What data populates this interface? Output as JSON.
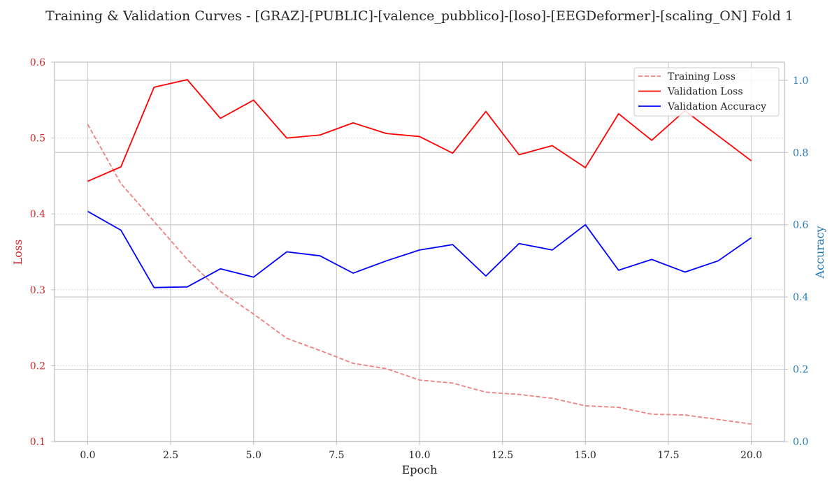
{
  "chart_data": {
    "type": "line",
    "title": "Training & Validation Curves - [GRAZ]-[PUBLIC]-[valence_pubblico]-[loso]-[EEGDeformer]-[scaling_ON] Fold 1",
    "xlabel": "Epoch",
    "ylabel_left": "Loss",
    "ylabel_right": "Accuracy",
    "xlim": [
      -1,
      21
    ],
    "ylim_left": [
      0.1,
      0.6
    ],
    "ylim_right": [
      0.0,
      1.05
    ],
    "x_ticks": [
      "0.0",
      "2.5",
      "5.0",
      "7.5",
      "10.0",
      "12.5",
      "15.0",
      "17.5",
      "20.0"
    ],
    "y_ticks_left": [
      "0.1",
      "0.2",
      "0.3",
      "0.4",
      "0.5",
      "0.6"
    ],
    "y_ticks_right": [
      "0.0",
      "0.2",
      "0.4",
      "0.6",
      "0.8",
      "1.0"
    ],
    "grid": true,
    "legend_position": "top-right",
    "x": [
      0,
      1,
      2,
      3,
      4,
      5,
      6,
      7,
      8,
      9,
      10,
      11,
      12,
      13,
      14,
      15,
      16,
      17,
      18,
      19,
      20
    ],
    "series": [
      {
        "name": "Training Loss",
        "axis": "left",
        "color": "#f08080",
        "style": "dashed",
        "values": [
          0.518,
          0.44,
          0.39,
          0.34,
          0.298,
          0.268,
          0.236,
          0.22,
          0.203,
          0.196,
          0.181,
          0.177,
          0.165,
          0.162,
          0.157,
          0.147,
          0.145,
          0.136,
          0.135,
          0.129,
          0.123
        ]
      },
      {
        "name": "Validation Loss",
        "axis": "left",
        "color": "#ff0000",
        "style": "solid",
        "values": [
          0.443,
          0.462,
          0.567,
          0.577,
          0.526,
          0.55,
          0.5,
          0.504,
          0.52,
          0.506,
          0.502,
          0.48,
          0.535,
          0.478,
          0.49,
          0.461,
          0.532,
          0.497,
          0.536,
          0.503,
          0.47
        ]
      },
      {
        "name": "Validation Accuracy",
        "axis": "right",
        "color": "#0000ff",
        "style": "solid",
        "values": [
          0.637,
          0.585,
          0.426,
          0.428,
          0.478,
          0.455,
          0.525,
          0.514,
          0.466,
          0.5,
          0.53,
          0.545,
          0.458,
          0.548,
          0.53,
          0.6,
          0.474,
          0.504,
          0.469,
          0.5,
          0.564
        ]
      }
    ]
  }
}
